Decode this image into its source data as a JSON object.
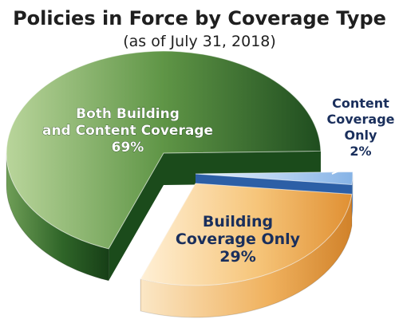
{
  "chart_data": {
    "type": "pie",
    "title": "Policies in Force by Coverage Type",
    "subtitle": "(as of July 31, 2018)",
    "unit": "%",
    "slices": [
      {
        "key": "both",
        "label_lines": [
          "Both Building",
          "and Content Coverage"
        ],
        "value_text": "69%",
        "value": 69,
        "color": "#2f6a2a",
        "text_color": "#ffffff"
      },
      {
        "key": "content",
        "label_lines": [
          "Content",
          "Coverage",
          "Only"
        ],
        "value_text": "2%",
        "value": 2,
        "color": "#a9c6ea",
        "text_color": "#1a2f5c"
      },
      {
        "key": "building",
        "label_lines": [
          "Building",
          "Coverage Only"
        ],
        "value_text": "29%",
        "value": 29,
        "color": "#f2b25a",
        "text_color": "#1a2f5c"
      }
    ]
  }
}
